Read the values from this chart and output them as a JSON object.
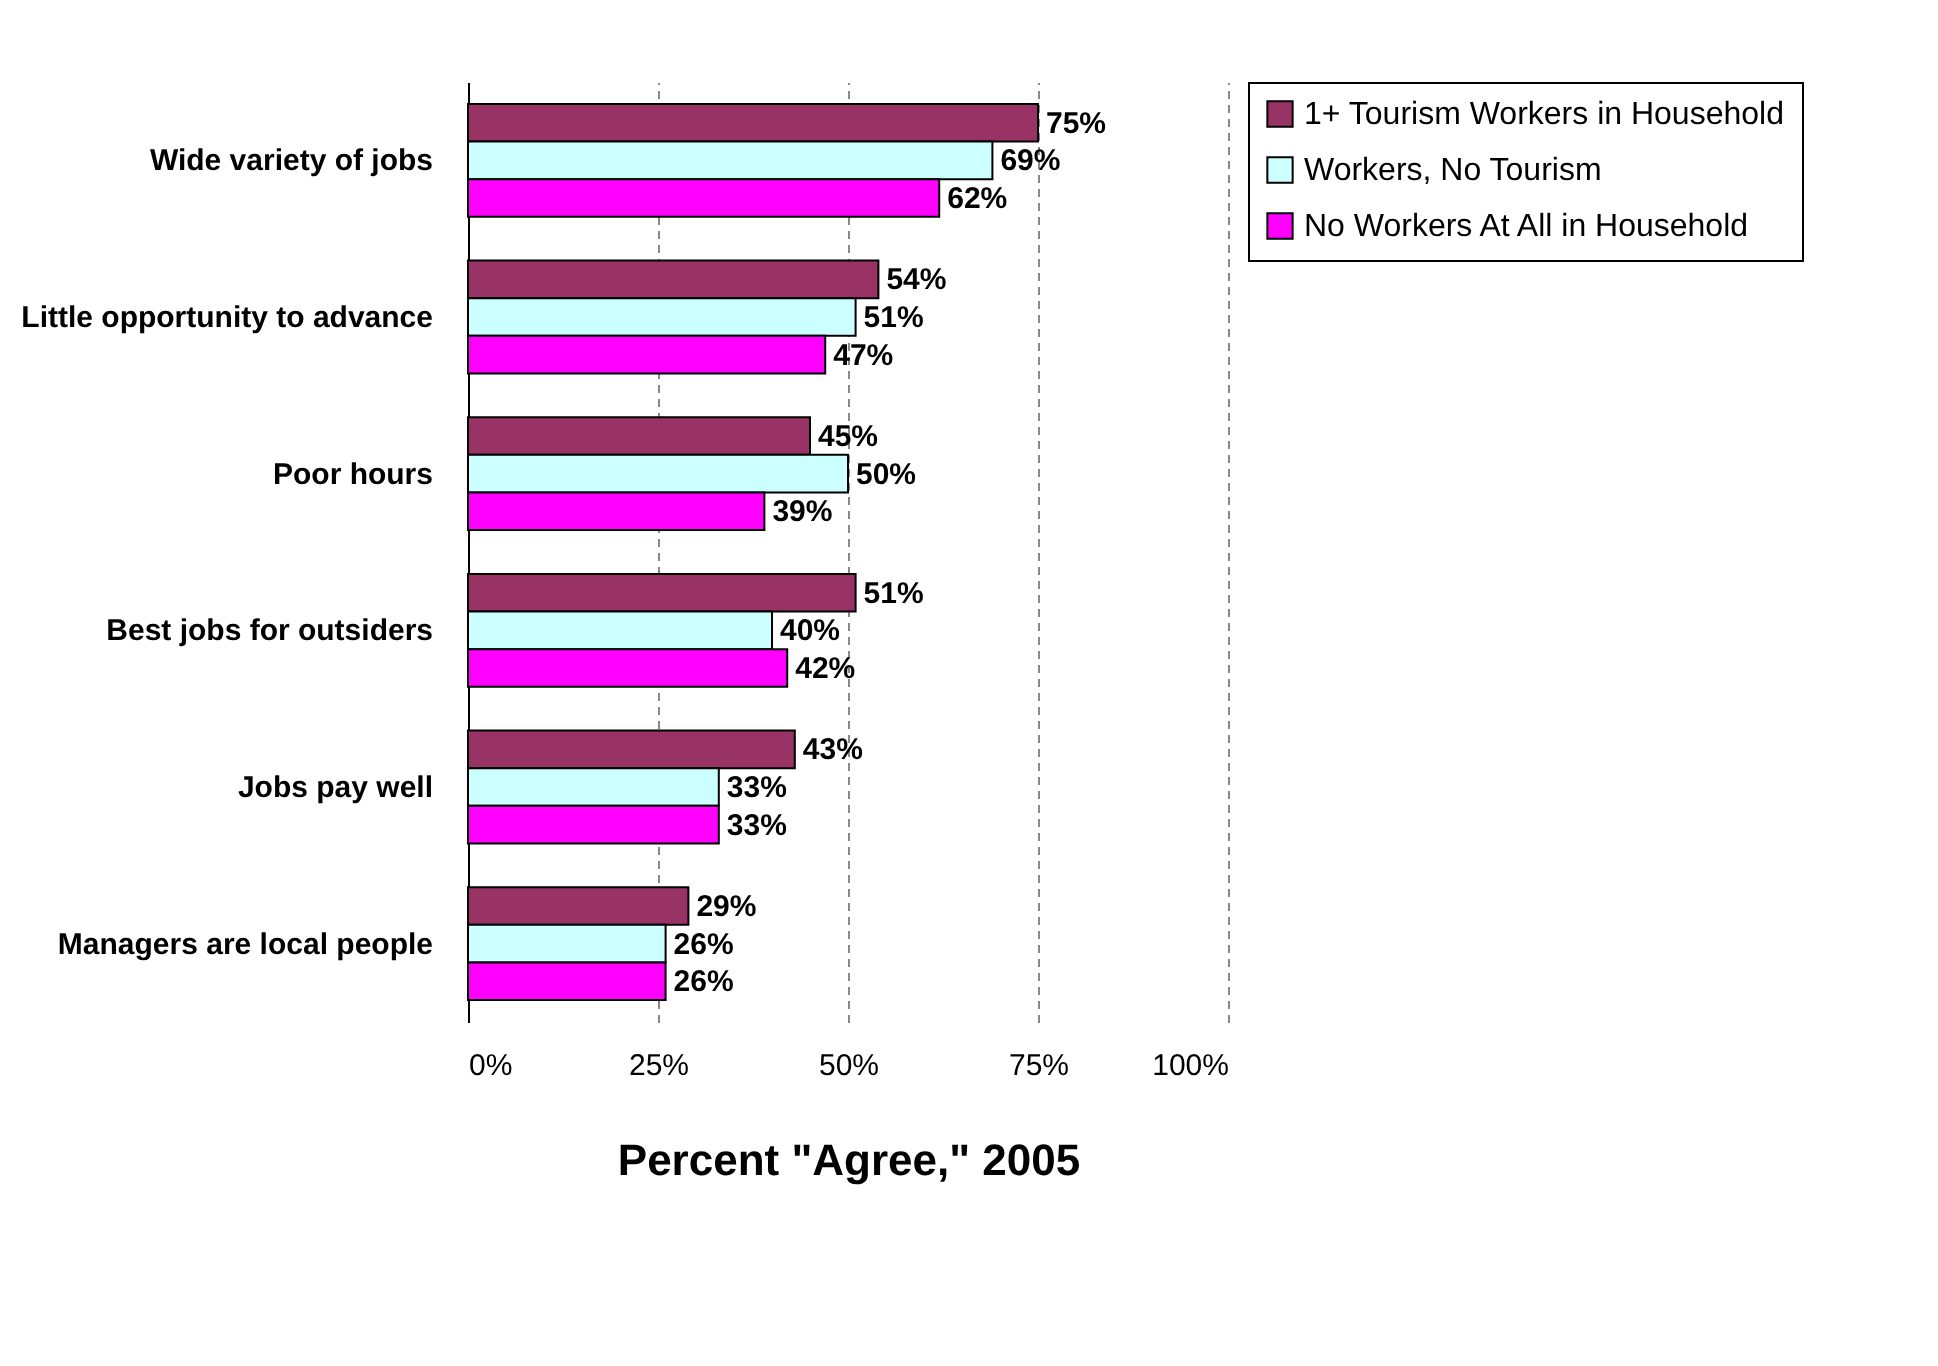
{
  "chart_data": {
    "type": "bar",
    "orientation": "horizontal",
    "xlabel": "Percent \"Agree,\" 2005",
    "categories": [
      "Wide variety of jobs",
      "Little opportunity to advance",
      "Poor hours",
      "Best jobs for outsiders",
      "Jobs pay well",
      "Managers are local people"
    ],
    "series": [
      {
        "name": "1+ Tourism Workers in Household",
        "color": "#993366",
        "values": [
          75,
          54,
          45,
          51,
          43,
          29
        ],
        "value_labels": [
          "75%",
          "54%",
          "45%",
          "51%",
          "43%",
          "29%"
        ]
      },
      {
        "name": "Workers, No Tourism",
        "color": "#ccffff",
        "values": [
          69,
          51,
          50,
          40,
          33,
          26
        ],
        "value_labels": [
          "69%",
          "51%",
          "50%",
          "40%",
          "33%",
          "26%"
        ]
      },
      {
        "name": "No Workers At All in Household",
        "color": "#ff00ff",
        "values": [
          62,
          47,
          39,
          42,
          33,
          26
        ],
        "value_labels": [
          "62%",
          "47%",
          "39%",
          "42%",
          "33%",
          "26%"
        ]
      }
    ],
    "xlim": [
      0,
      100
    ],
    "xticks": [
      {
        "value": 0,
        "label": "0%"
      },
      {
        "value": 25,
        "label": "25%"
      },
      {
        "value": 50,
        "label": "50%"
      },
      {
        "value": 75,
        "label": "75%"
      },
      {
        "value": 100,
        "label": "100%"
      }
    ],
    "grid": "x",
    "legend": "right"
  }
}
